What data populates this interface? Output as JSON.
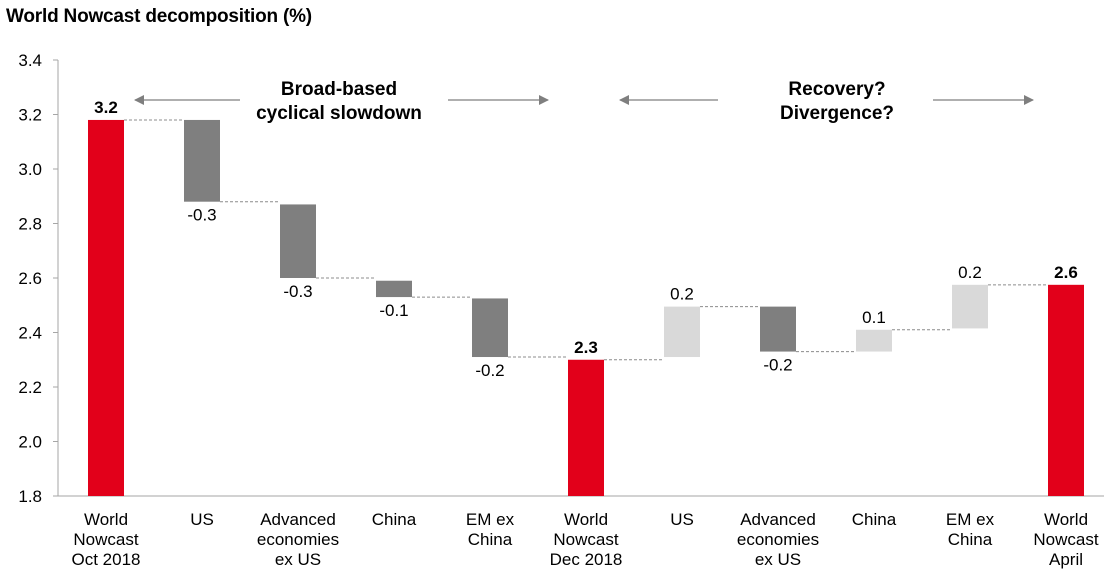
{
  "chart_data": {
    "type": "bar",
    "subtype": "waterfall",
    "title": "World Nowcast decomposition (%)",
    "xlabel": "",
    "ylabel": "",
    "ylim": [
      1.8,
      3.4
    ],
    "yticks": [
      1.8,
      2.0,
      2.2,
      2.4,
      2.6,
      2.8,
      3.0,
      3.2,
      3.4
    ],
    "ytick_labels": [
      "1.8",
      "2.0",
      "2.2",
      "2.4",
      "2.6",
      "2.8",
      "3.0",
      "3.2",
      "3.4"
    ],
    "grid": false,
    "legend": null,
    "bars": [
      {
        "kind": "total",
        "category": [
          "World",
          "Nowcast",
          "Oct 2018"
        ],
        "start": 1.8,
        "end": 3.18,
        "label": "3.2"
      },
      {
        "kind": "decrease",
        "category": [
          "US"
        ],
        "start": 3.18,
        "end": 2.88,
        "label": "-0.3"
      },
      {
        "kind": "decrease",
        "category": [
          "Advanced",
          "economies",
          "ex US"
        ],
        "start": 2.87,
        "end": 2.6,
        "label": "-0.3"
      },
      {
        "kind": "decrease",
        "category": [
          "China"
        ],
        "start": 2.59,
        "end": 2.53,
        "label": "-0.1"
      },
      {
        "kind": "decrease",
        "category": [
          "EM ex",
          "China"
        ],
        "start": 2.525,
        "end": 2.31,
        "label": "-0.2"
      },
      {
        "kind": "total",
        "category": [
          "World",
          "Nowcast",
          "Dec 2018"
        ],
        "start": 1.8,
        "end": 2.3,
        "label": "2.3"
      },
      {
        "kind": "increase",
        "category": [
          "US"
        ],
        "start": 2.31,
        "end": 2.495,
        "label": "0.2"
      },
      {
        "kind": "decrease",
        "category": [
          "Advanced",
          "economies",
          "ex US"
        ],
        "start": 2.495,
        "end": 2.33,
        "label": "-0.2"
      },
      {
        "kind": "increase",
        "category": [
          "China"
        ],
        "start": 2.33,
        "end": 2.41,
        "label": "0.1"
      },
      {
        "kind": "increase",
        "category": [
          "EM ex",
          "China"
        ],
        "start": 2.415,
        "end": 2.575,
        "label": "0.2"
      },
      {
        "kind": "total",
        "category": [
          "World",
          "Nowcast",
          "April"
        ],
        "start": 1.8,
        "end": 2.575,
        "label": "2.6"
      }
    ],
    "colors": {
      "total": "#e2001a",
      "decrease": "#7f7f7f",
      "increase": "#d9d9d9",
      "connector": "#8c8c8c",
      "axis": "#a6a6a6",
      "arrow": "#7f7f7f"
    },
    "annotations": [
      {
        "name": "broad-based",
        "lines": [
          "Broad-based",
          "cyclical slowdown"
        ]
      },
      {
        "name": "recovery",
        "lines": [
          "Recovery?",
          "Divergence?"
        ]
      }
    ]
  }
}
